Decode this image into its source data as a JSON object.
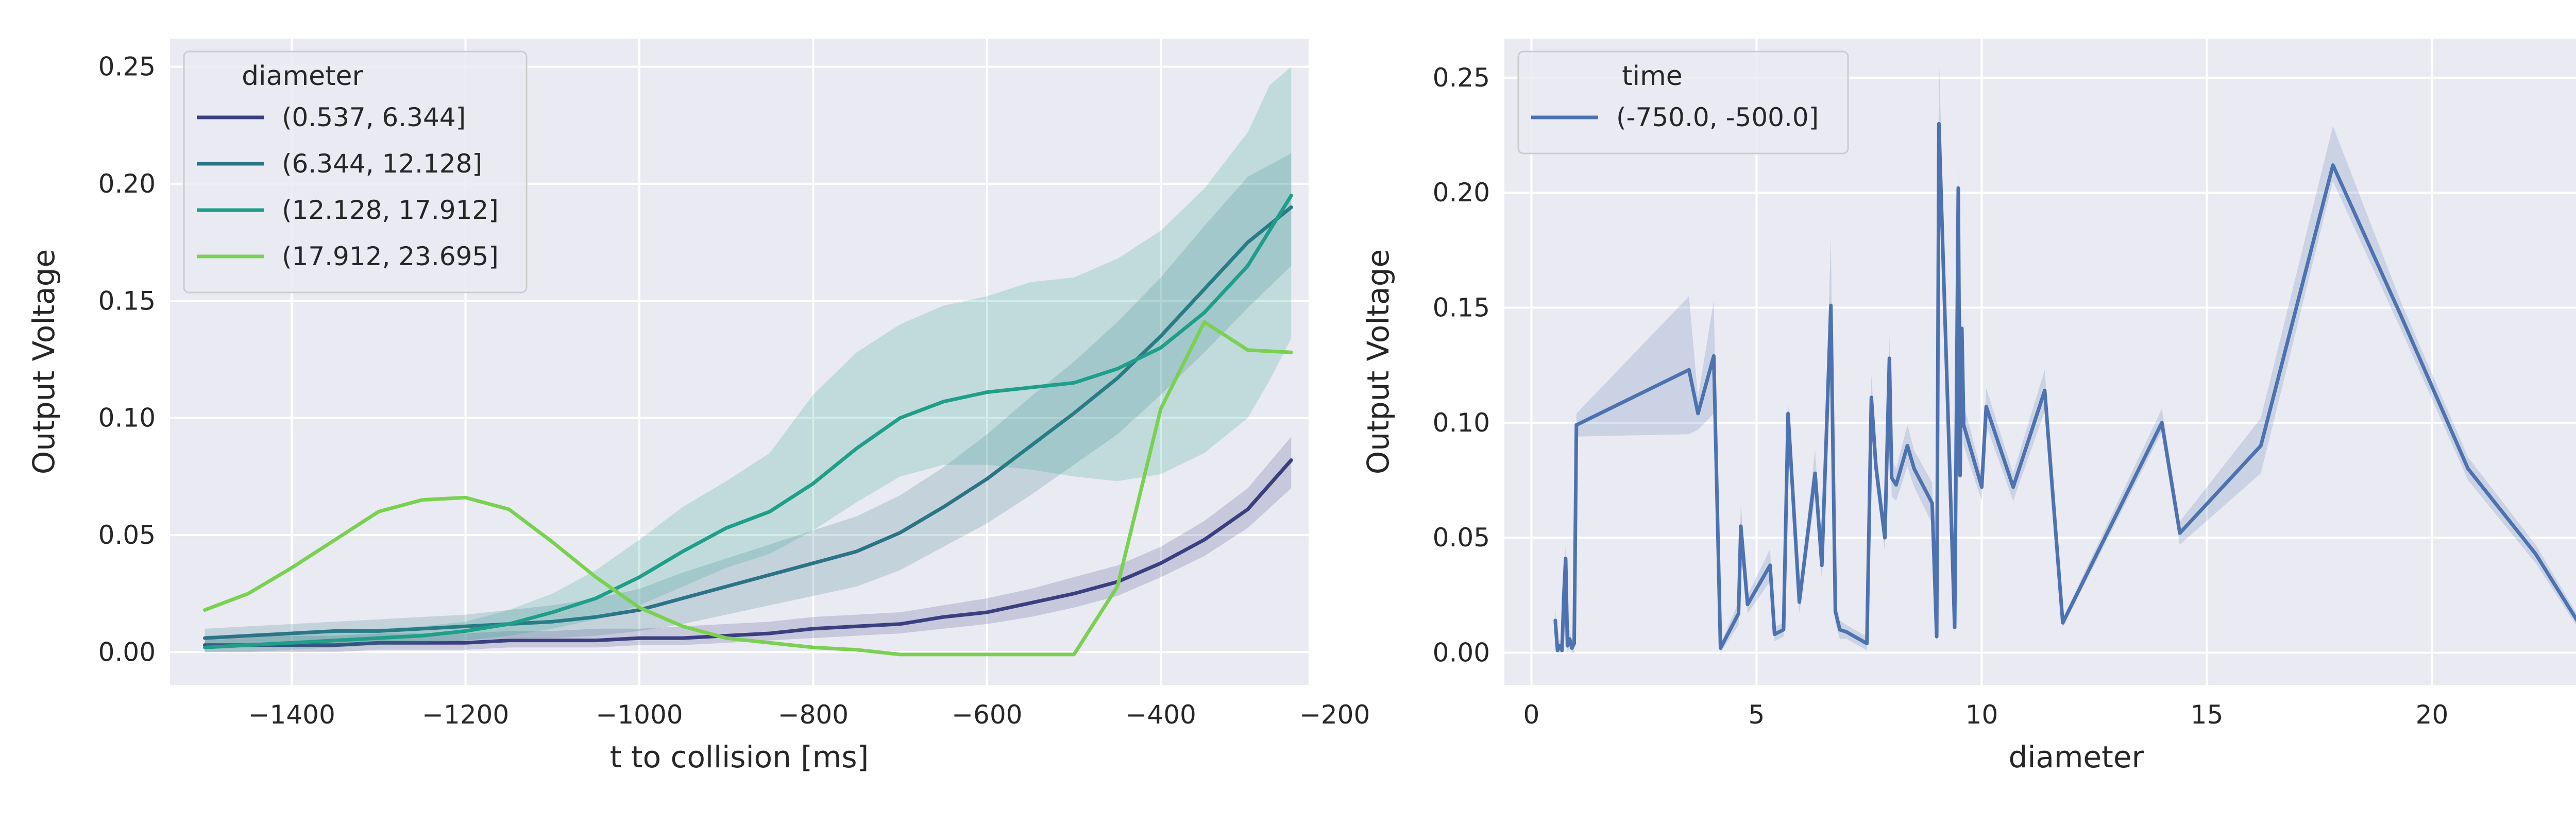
{
  "chart_data": [
    {
      "type": "line",
      "title": "",
      "xlabel": "t to collision [ms]",
      "ylabel": "Output Voltage",
      "xlim": [
        -1540,
        -230
      ],
      "ylim": [
        -0.014,
        0.262
      ],
      "xticks": [
        -1400,
        -1200,
        -1000,
        -800,
        -600,
        -400,
        -200
      ],
      "xtick_labels": [
        "−1400",
        "−1200",
        "−1000",
        "−800",
        "−600",
        "−400",
        "−200"
      ],
      "yticks": [
        0.0,
        0.05,
        0.1,
        0.15,
        0.2,
        0.25
      ],
      "ytick_labels": [
        "0.00",
        "0.05",
        "0.10",
        "0.15",
        "0.20",
        "0.25"
      ],
      "grid": true,
      "legend": {
        "title": "diameter",
        "position": "top-left"
      },
      "x": [
        -1500,
        -1450,
        -1400,
        -1350,
        -1300,
        -1250,
        -1200,
        -1150,
        -1100,
        -1050,
        -1000,
        -950,
        -900,
        -850,
        -800,
        -750,
        -700,
        -650,
        -600,
        -550,
        -500,
        -450,
        -400,
        -350,
        -300,
        -250
      ],
      "series": [
        {
          "name": "(0.537, 6.344]",
          "color": "#3b3f80",
          "values": [
            0.003,
            0.003,
            0.003,
            0.003,
            0.004,
            0.004,
            0.004,
            0.005,
            0.005,
            0.005,
            0.006,
            0.006,
            0.007,
            0.008,
            0.01,
            0.011,
            0.012,
            0.015,
            0.017,
            0.021,
            0.025,
            0.03,
            0.038,
            0.048,
            0.061,
            0.082
          ],
          "lower": [
            0.0,
            0.0,
            0.0,
            0.0,
            0.001,
            0.001,
            0.001,
            0.002,
            0.002,
            0.002,
            0.003,
            0.003,
            0.004,
            0.005,
            0.006,
            0.007,
            0.008,
            0.01,
            0.012,
            0.015,
            0.019,
            0.024,
            0.032,
            0.041,
            0.053,
            0.07
          ],
          "upper": [
            0.007,
            0.007,
            0.007,
            0.007,
            0.008,
            0.008,
            0.008,
            0.009,
            0.009,
            0.01,
            0.01,
            0.011,
            0.012,
            0.013,
            0.015,
            0.016,
            0.017,
            0.02,
            0.023,
            0.027,
            0.032,
            0.037,
            0.045,
            0.056,
            0.07,
            0.092
          ]
        },
        {
          "name": "(6.344, 12.128]",
          "color": "#2b7486",
          "values": [
            0.006,
            0.007,
            0.008,
            0.009,
            0.009,
            0.01,
            0.011,
            0.012,
            0.013,
            0.015,
            0.018,
            0.023,
            0.028,
            0.033,
            0.038,
            0.043,
            0.051,
            0.062,
            0.074,
            0.088,
            0.102,
            0.117,
            0.135,
            0.155,
            0.175,
            0.19
          ],
          "lower": [
            0.002,
            0.002,
            0.003,
            0.003,
            0.004,
            0.004,
            0.005,
            0.006,
            0.006,
            0.007,
            0.009,
            0.012,
            0.016,
            0.02,
            0.024,
            0.028,
            0.035,
            0.045,
            0.055,
            0.067,
            0.08,
            0.093,
            0.11,
            0.128,
            0.147,
            0.165
          ],
          "upper": [
            0.01,
            0.011,
            0.012,
            0.013,
            0.014,
            0.015,
            0.016,
            0.018,
            0.02,
            0.023,
            0.027,
            0.034,
            0.04,
            0.046,
            0.052,
            0.058,
            0.067,
            0.079,
            0.093,
            0.109,
            0.124,
            0.141,
            0.16,
            0.182,
            0.203,
            0.213
          ]
        },
        {
          "name": "(12.128, 17.912]",
          "color": "#1f9e89",
          "values": [
            0.002,
            0.003,
            0.004,
            0.005,
            0.006,
            0.007,
            0.009,
            0.012,
            0.017,
            0.023,
            0.032,
            0.043,
            0.053,
            0.06,
            0.072,
            0.087,
            0.1,
            0.107,
            0.111,
            0.113,
            0.115,
            0.121,
            0.13,
            0.145,
            0.165,
            0.18,
            0.195
          ],
          "x": [
            -1500,
            -1450,
            -1400,
            -1350,
            -1300,
            -1250,
            -1200,
            -1150,
            -1100,
            -1050,
            -1000,
            -950,
            -900,
            -850,
            -800,
            -750,
            -700,
            -650,
            -600,
            -550,
            -500,
            -450,
            -400,
            -350,
            -300,
            -275,
            -250
          ],
          "lower": [
            0.0,
            0.0,
            0.001,
            0.002,
            0.003,
            0.004,
            0.005,
            0.007,
            0.01,
            0.014,
            0.02,
            0.028,
            0.036,
            0.042,
            0.052,
            0.064,
            0.075,
            0.08,
            0.08,
            0.078,
            0.075,
            0.073,
            0.076,
            0.085,
            0.1,
            0.116,
            0.134
          ],
          "upper": [
            0.005,
            0.006,
            0.008,
            0.009,
            0.01,
            0.011,
            0.013,
            0.018,
            0.025,
            0.035,
            0.048,
            0.062,
            0.073,
            0.085,
            0.11,
            0.128,
            0.14,
            0.148,
            0.152,
            0.158,
            0.16,
            0.168,
            0.18,
            0.198,
            0.222,
            0.242,
            0.25
          ]
        },
        {
          "name": "(17.912, 23.695]",
          "color": "#7ad151",
          "x": [
            -1500,
            -1450,
            -1400,
            -1350,
            -1300,
            -1250,
            -1200,
            -1150,
            -1100,
            -1050,
            -1000,
            -950,
            -900,
            -850,
            -800,
            -750,
            -700,
            -650,
            -600,
            -550,
            -500,
            -450,
            -400,
            -350,
            -300,
            -250
          ],
          "values": [
            0.018,
            0.025,
            0.036,
            0.048,
            0.06,
            0.065,
            0.066,
            0.061,
            0.047,
            0.032,
            0.019,
            0.011,
            0.006,
            0.004,
            0.002,
            0.001,
            -0.001,
            -0.001,
            -0.001,
            -0.001,
            -0.001,
            0.028,
            0.104,
            0.141,
            0.129,
            0.128
          ]
        }
      ]
    },
    {
      "type": "line",
      "title": "",
      "xlabel": "diameter",
      "ylabel": "Output Voltage",
      "xlim": [
        -0.6,
        24.8
      ],
      "ylim": [
        -0.014,
        0.267
      ],
      "xticks": [
        0,
        5,
        10,
        15,
        20
      ],
      "xtick_labels": [
        "0",
        "5",
        "10",
        "15",
        "20"
      ],
      "yticks": [
        0.0,
        0.05,
        0.1,
        0.15,
        0.2,
        0.25
      ],
      "ytick_labels": [
        "0.00",
        "0.05",
        "0.10",
        "0.15",
        "0.20",
        "0.25"
      ],
      "grid": true,
      "legend": {
        "title": "time",
        "position": "top-left"
      },
      "series": [
        {
          "name": "(-750.0, -500.0]",
          "color": "#4c72b0",
          "x": [
            0.53,
            0.58,
            0.63,
            0.68,
            0.72,
            0.76,
            0.8,
            0.85,
            0.9,
            0.95,
            1.0,
            3.5,
            3.7,
            4.05,
            4.2,
            4.6,
            4.65,
            4.8,
            5.3,
            5.4,
            5.6,
            5.7,
            5.95,
            6.3,
            6.45,
            6.65,
            6.75,
            6.85,
            7.0,
            7.45,
            7.55,
            7.65,
            7.85,
            7.95,
            8.0,
            8.1,
            8.35,
            8.5,
            8.9,
            9.0,
            9.05,
            9.4,
            9.48,
            9.52,
            9.56,
            9.6,
            10.0,
            10.1,
            10.7,
            11.4,
            11.8,
            14.0,
            14.4,
            16.2,
            17.8,
            19.3,
            20.8,
            22.3,
            23.7
          ],
          "values": [
            0.014,
            0.001,
            0.003,
            0.001,
            0.025,
            0.041,
            0.003,
            0.006,
            0.002,
            0.004,
            0.099,
            0.123,
            0.104,
            0.129,
            0.002,
            0.017,
            0.055,
            0.021,
            0.038,
            0.008,
            0.01,
            0.104,
            0.022,
            0.078,
            0.038,
            0.151,
            0.018,
            0.01,
            0.009,
            0.004,
            0.111,
            0.081,
            0.05,
            0.128,
            0.076,
            0.073,
            0.09,
            0.08,
            0.065,
            0.007,
            0.23,
            0.011,
            0.202,
            0.077,
            0.141,
            0.099,
            0.072,
            0.107,
            0.072,
            0.114,
            0.013,
            0.1,
            0.052,
            0.09,
            0.212,
            0.147,
            0.08,
            0.043,
            -0.001
          ],
          "lower": [
            0.008,
            0.0,
            0.0,
            0.0,
            0.02,
            0.035,
            0.0,
            0.002,
            0.0,
            0.0,
            0.094,
            0.095,
            0.097,
            0.104,
            0.0,
            0.012,
            0.045,
            0.017,
            0.031,
            0.005,
            0.007,
            0.098,
            0.017,
            0.068,
            0.032,
            0.13,
            0.013,
            0.006,
            0.006,
            0.001,
            0.101,
            0.073,
            0.044,
            0.118,
            0.068,
            0.066,
            0.081,
            0.072,
            0.056,
            0.004,
            0.218,
            0.007,
            0.192,
            0.07,
            0.13,
            0.09,
            0.066,
            0.099,
            0.066,
            0.105,
            0.011,
            0.096,
            0.047,
            0.078,
            0.205,
            0.141,
            0.075,
            0.039,
            -0.003
          ],
          "upper": [
            0.02,
            0.003,
            0.006,
            0.003,
            0.03,
            0.047,
            0.006,
            0.01,
            0.005,
            0.008,
            0.104,
            0.155,
            0.111,
            0.153,
            0.004,
            0.022,
            0.065,
            0.025,
            0.045,
            0.011,
            0.013,
            0.11,
            0.027,
            0.088,
            0.044,
            0.181,
            0.023,
            0.014,
            0.012,
            0.007,
            0.121,
            0.089,
            0.056,
            0.138,
            0.084,
            0.08,
            0.099,
            0.088,
            0.074,
            0.01,
            0.26,
            0.015,
            0.212,
            0.084,
            0.152,
            0.108,
            0.078,
            0.115,
            0.078,
            0.123,
            0.015,
            0.106,
            0.057,
            0.102,
            0.229,
            0.153,
            0.085,
            0.047,
            0.001
          ]
        }
      ]
    }
  ]
}
